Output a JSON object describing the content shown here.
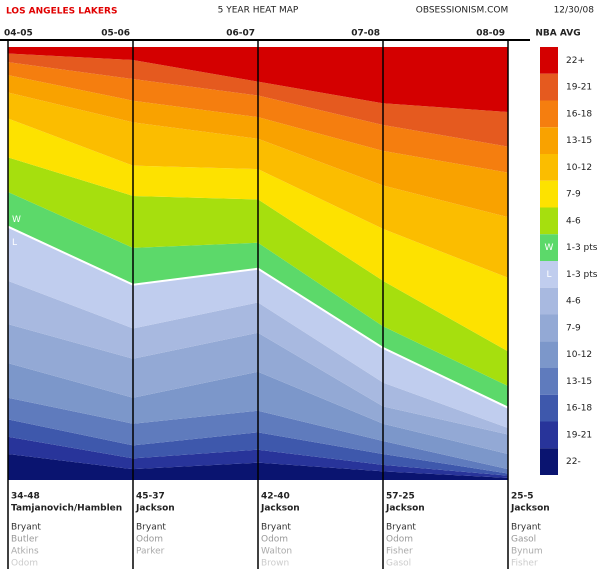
{
  "chart_data": {
    "type": "stacked_area",
    "title": "5 YEAR HEAT MAP",
    "team": "LOS ANGELES LAKERS",
    "source": "OBSESSIONISM.COM",
    "date": "12/30/08",
    "legend_title": "NBA AVG",
    "win_label": "W",
    "loss_label": "L",
    "categories": [
      "04-05",
      "05-06",
      "06-07",
      "07-08",
      "08-09"
    ],
    "ylim": [
      0,
      100
    ],
    "win_series_count": 8,
    "series": [
      {
        "name": "22+",
        "color": "#d40000",
        "values": [
          1.5,
          3,
          8,
          13,
          15
        ]
      },
      {
        "name": "19-21",
        "color": "#e55a1f",
        "values": [
          2,
          4.4,
          3.2,
          5,
          8
        ]
      },
      {
        "name": "16-18",
        "color": "#f57e0f",
        "values": [
          3,
          5,
          5,
          6,
          6
        ]
      },
      {
        "name": "13-15",
        "color": "#f9a200",
        "values": [
          4,
          5,
          5,
          8,
          10.3
        ]
      },
      {
        "name": "10-12",
        "color": "#fbbd00",
        "values": [
          6,
          10,
          7,
          10,
          14
        ]
      },
      {
        "name": "7-9",
        "color": "#fde200",
        "values": [
          9,
          7,
          7,
          12,
          17
        ]
      },
      {
        "name": "4-6",
        "color": "#a6df0e",
        "values": [
          8,
          12,
          10,
          10.5,
          8
        ]
      },
      {
        "name": "1-3 pts",
        "color": "#5cd96a",
        "values": [
          8,
          8.5,
          6,
          5,
          5
        ]
      },
      {
        "name": "1-3 pts",
        "color": "#c0cdee",
        "values": [
          12.5,
          10.1,
          7.8,
          8,
          4.7
        ]
      },
      {
        "name": "4-6",
        "color": "#a8b9e0",
        "values": [
          10,
          7,
          7,
          5.5,
          1.5
        ]
      },
      {
        "name": "7-9",
        "color": "#93a9d5",
        "values": [
          9,
          9,
          9,
          4,
          4.5
        ]
      },
      {
        "name": "10-12",
        "color": "#7c97ca",
        "values": [
          8,
          6,
          9,
          4,
          3.5
        ]
      },
      {
        "name": "13-15",
        "color": "#5f7bbd",
        "values": [
          5,
          5,
          5,
          3,
          1
        ]
      },
      {
        "name": "16-18",
        "color": "#3e58ac",
        "values": [
          4,
          3,
          4,
          2.5,
          0.5
        ]
      },
      {
        "name": "19-21",
        "color": "#28349a",
        "values": [
          4,
          2.5,
          3,
          1.5,
          0.5
        ]
      },
      {
        "name": "22-",
        "color": "#0a1470",
        "values": [
          6,
          2.5,
          4,
          2,
          0.5
        ]
      }
    ],
    "records": [
      "34-48",
      "45-37",
      "42-40",
      "57-25",
      "25-5"
    ],
    "coaches": [
      "Tamjanovich/Hamblen",
      "Jackson",
      "Jackson",
      "Jackson",
      "Jackson"
    ],
    "players": [
      [
        "Bryant",
        "Butler",
        "Atkins",
        "Odom"
      ],
      [
        "Bryant",
        "Odom",
        "Parker"
      ],
      [
        "Bryant",
        "Odom",
        "Walton",
        "Brown"
      ],
      [
        "Bryant",
        "Odom",
        "Fisher",
        "Gasol"
      ],
      [
        "Bryant",
        "Gasol",
        "Bynum",
        "Fisher"
      ]
    ]
  }
}
